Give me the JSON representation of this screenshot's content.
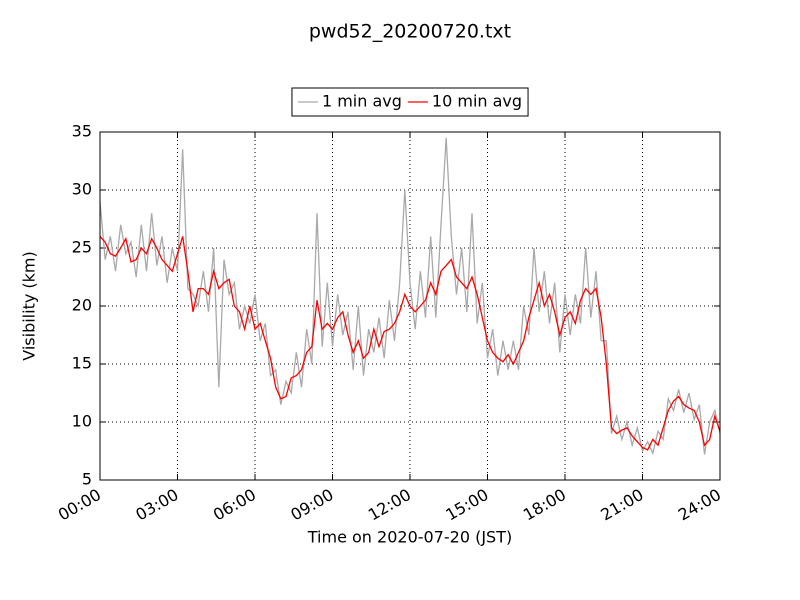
{
  "chart_data": {
    "type": "line",
    "title": "pwd52_20200720.txt",
    "x_label": "Time on 2020-07-20 (JST)",
    "y_label": "Visibility (km)",
    "x": [
      0,
      0.2,
      0.4,
      0.6,
      0.8,
      1,
      1.2,
      1.4,
      1.6,
      1.8,
      2,
      2.2,
      2.4,
      2.6,
      2.8,
      3,
      3.2,
      3.4,
      3.6,
      3.8,
      4,
      4.2,
      4.4,
      4.6,
      4.8,
      5,
      5.2,
      5.4,
      5.6,
      5.8,
      6,
      6.2,
      6.4,
      6.6,
      6.8,
      7,
      7.2,
      7.4,
      7.6,
      7.8,
      8,
      8.2,
      8.4,
      8.6,
      8.8,
      9,
      9.2,
      9.4,
      9.6,
      9.8,
      10,
      10.2,
      10.4,
      10.6,
      10.8,
      11,
      11.2,
      11.4,
      11.6,
      11.8,
      12,
      12.2,
      12.4,
      12.6,
      12.8,
      13,
      13.2,
      13.4,
      13.6,
      13.8,
      14,
      14.2,
      14.4,
      14.6,
      14.8,
      15,
      15.2,
      15.4,
      15.6,
      15.8,
      16,
      16.2,
      16.4,
      16.6,
      16.8,
      17,
      17.2,
      17.4,
      17.6,
      17.8,
      18,
      18.2,
      18.4,
      18.6,
      18.8,
      19,
      19.2,
      19.4,
      19.6,
      19.8,
      20,
      20.2,
      20.4,
      20.6,
      20.8,
      21,
      21.2,
      21.4,
      21.6,
      21.8,
      22,
      22.2,
      22.4,
      22.6,
      22.8,
      23,
      23.2,
      23.4,
      23.6,
      23.8,
      24
    ],
    "series": [
      {
        "name": "1 min avg",
        "color": "#a9a9a9",
        "values": [
          29,
          24,
          26,
          23,
          27,
          24.5,
          25.5,
          22.5,
          27,
          23,
          28,
          23.5,
          26,
          22,
          25,
          23,
          33.5,
          21.5,
          21,
          20,
          23,
          19.5,
          25,
          13,
          24,
          21,
          22,
          18,
          20,
          18.5,
          21,
          17,
          18.5,
          14,
          14.5,
          11.5,
          13.5,
          12.5,
          16,
          13,
          18,
          15,
          28,
          16.5,
          22,
          16.5,
          21,
          17.5,
          19.5,
          14.5,
          20,
          14,
          18,
          16,
          19,
          15.5,
          20.5,
          17,
          22,
          30,
          22,
          18,
          23,
          19,
          26,
          19,
          27,
          34.5,
          26,
          21,
          25,
          19.5,
          28,
          18.5,
          22,
          15.5,
          18,
          14,
          17,
          14.5,
          17,
          14.5,
          20,
          17.5,
          25,
          19.5,
          23,
          18.5,
          22,
          16,
          21,
          17.5,
          21,
          18.5,
          25,
          19,
          23,
          17,
          17,
          9,
          10.5,
          8.5,
          10,
          8,
          9.5,
          7.5,
          8.3,
          7.3,
          9.2,
          8.5,
          12,
          11,
          12.8,
          10.8,
          12.5,
          10.2,
          11.5,
          7.2,
          10,
          11,
          9
        ]
      },
      {
        "name": "10 min avg",
        "color": "#ff0000",
        "values": [
          26,
          25.5,
          24.5,
          24.3,
          25,
          25.8,
          23.8,
          24,
          25,
          24.5,
          25.8,
          25,
          24,
          23.5,
          23,
          24.5,
          26,
          23,
          19.5,
          21.5,
          21.5,
          21,
          23,
          21.5,
          22,
          22.3,
          20,
          19.5,
          18,
          20,
          18,
          18.5,
          17,
          15.5,
          13,
          12,
          12.2,
          13.8,
          14,
          14.5,
          16,
          16.5,
          20.5,
          18,
          18.5,
          18,
          19,
          19.5,
          17.5,
          16,
          17,
          15.5,
          16,
          18,
          16.5,
          17.8,
          18,
          18.5,
          19.5,
          21,
          20,
          19.5,
          20,
          20.5,
          22,
          21,
          23,
          23.5,
          24,
          22.5,
          22,
          21.5,
          22.5,
          21,
          19,
          17,
          16,
          15.5,
          15.2,
          15.8,
          15,
          16,
          17,
          19,
          20.5,
          22,
          20,
          21,
          19.5,
          17.5,
          19,
          19.5,
          18.5,
          20.5,
          21.5,
          21,
          21.5,
          19,
          15,
          9.5,
          9,
          9.3,
          9.5,
          8.8,
          8.3,
          7.8,
          7.6,
          8.5,
          8,
          9.5,
          11,
          11.8,
          12.2,
          11.5,
          11.2,
          11,
          10,
          8,
          8.5,
          10.5,
          9.2
        ]
      }
    ],
    "xlim": [
      0,
      24
    ],
    "xticks": [
      {
        "value": 0,
        "label": "00:00"
      },
      {
        "value": 3,
        "label": "03:00"
      },
      {
        "value": 6,
        "label": "06:00"
      },
      {
        "value": 9,
        "label": "09:00"
      },
      {
        "value": 12,
        "label": "12:00"
      },
      {
        "value": 15,
        "label": "15:00"
      },
      {
        "value": 18,
        "label": "18:00"
      },
      {
        "value": 21,
        "label": "21:00"
      },
      {
        "value": 24,
        "label": "24:00"
      }
    ],
    "ylim": [
      5,
      35
    ],
    "yticks": [
      5,
      10,
      15,
      20,
      25,
      30,
      35
    ],
    "grid": true,
    "legend": "top"
  }
}
